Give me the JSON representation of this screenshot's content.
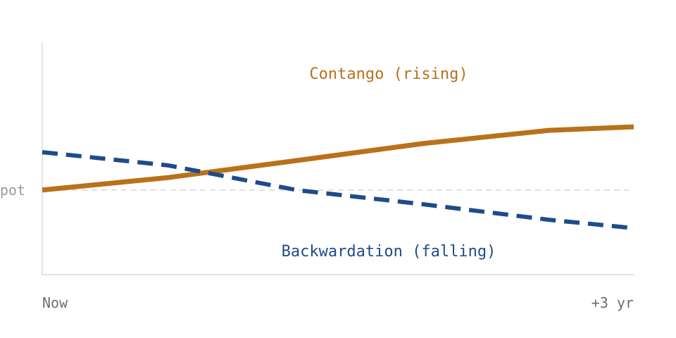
{
  "chart_data": {
    "type": "line",
    "title": "",
    "xlabel": "",
    "ylabel": "",
    "x_ticks": [
      "Now",
      "+3 yr"
    ],
    "xlim": [
      0,
      3
    ],
    "ylim": [
      0,
      100
    ],
    "grid": false,
    "reference_line": {
      "label": "Spot",
      "y": 36.4
    },
    "series": [
      {
        "name": "Contango (rising)",
        "color": "#b8721a",
        "style": "solid",
        "points": [
          {
            "x": 0,
            "y": 36.4
          },
          {
            "x": 0.64,
            "y": 41.8
          },
          {
            "x": 1.29,
            "y": 49.1
          },
          {
            "x": 1.93,
            "y": 56.4
          },
          {
            "x": 2.57,
            "y": 62.1
          },
          {
            "x": 3.0,
            "y": 63.6
          }
        ]
      },
      {
        "name": "Backwardation (falling)",
        "color": "#1f4b8a",
        "style": "dashed",
        "points": [
          {
            "x": 0,
            "y": 52.7
          },
          {
            "x": 0.64,
            "y": 47.0
          },
          {
            "x": 1.29,
            "y": 36.4
          },
          {
            "x": 1.93,
            "y": 30.3
          },
          {
            "x": 2.57,
            "y": 23.6
          },
          {
            "x": 3.0,
            "y": 20.0
          }
        ]
      }
    ]
  }
}
